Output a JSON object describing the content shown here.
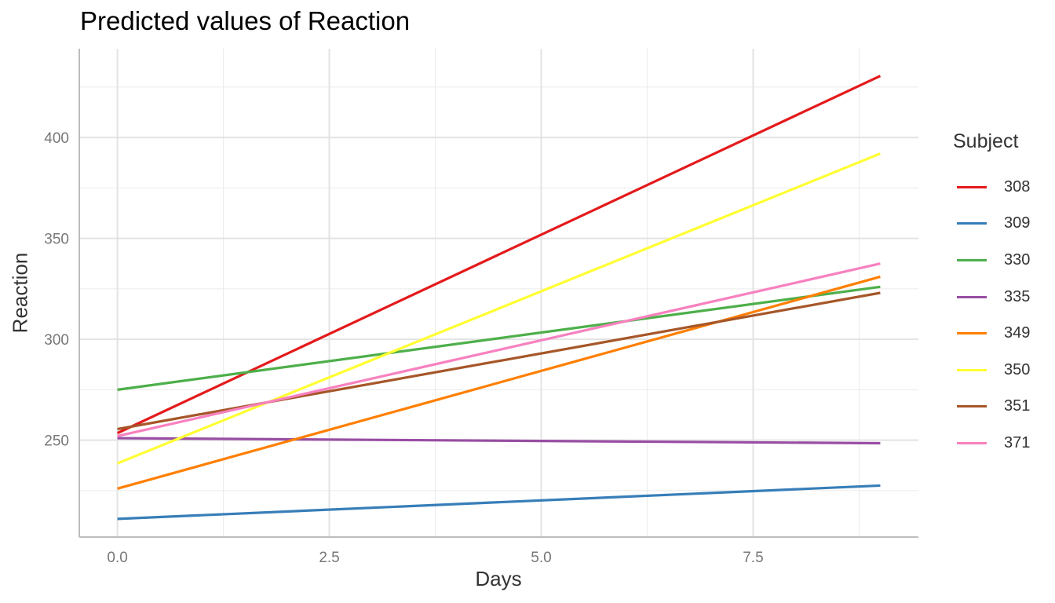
{
  "chart_data": {
    "type": "line",
    "title": "Predicted values of Reaction",
    "xlabel": "Days",
    "ylabel": "Reaction",
    "xlim": [
      -0.45,
      9.45
    ],
    "ylim": [
      202,
      444
    ],
    "x_ticks": [
      0,
      2.5,
      5,
      7.5
    ],
    "x_tick_labels": [
      "0.0",
      "2.5",
      "5.0",
      "7.5"
    ],
    "x_minor_ticks": [
      1.25,
      3.75,
      6.25,
      8.75
    ],
    "y_ticks": [
      250,
      300,
      350,
      400
    ],
    "y_tick_labels": [
      "250",
      "300",
      "350",
      "400"
    ],
    "y_minor_ticks": [
      225,
      275,
      325,
      375,
      425
    ],
    "grid": true,
    "legend_placement": "right",
    "legend_title": "Subject",
    "x": [
      0,
      9
    ],
    "series": [
      {
        "name": "308",
        "color": "#E41A1C",
        "values": [
          253.5,
          430.5
        ]
      },
      {
        "name": "309",
        "color": "#377EB8",
        "values": [
          211.0,
          227.5
        ]
      },
      {
        "name": "330",
        "color": "#4DAF4A",
        "values": [
          275.0,
          326.0
        ]
      },
      {
        "name": "335",
        "color": "#984EA3",
        "values": [
          251.0,
          248.5
        ]
      },
      {
        "name": "349",
        "color": "#FF7F00",
        "values": [
          226.0,
          331.0
        ]
      },
      {
        "name": "350",
        "color": "#FFFF33",
        "values": [
          238.5,
          392.0
        ]
      },
      {
        "name": "351",
        "color": "#A65628",
        "values": [
          255.5,
          323.0
        ]
      },
      {
        "name": "371",
        "color": "#F781BF",
        "values": [
          252.0,
          337.5
        ]
      }
    ]
  }
}
